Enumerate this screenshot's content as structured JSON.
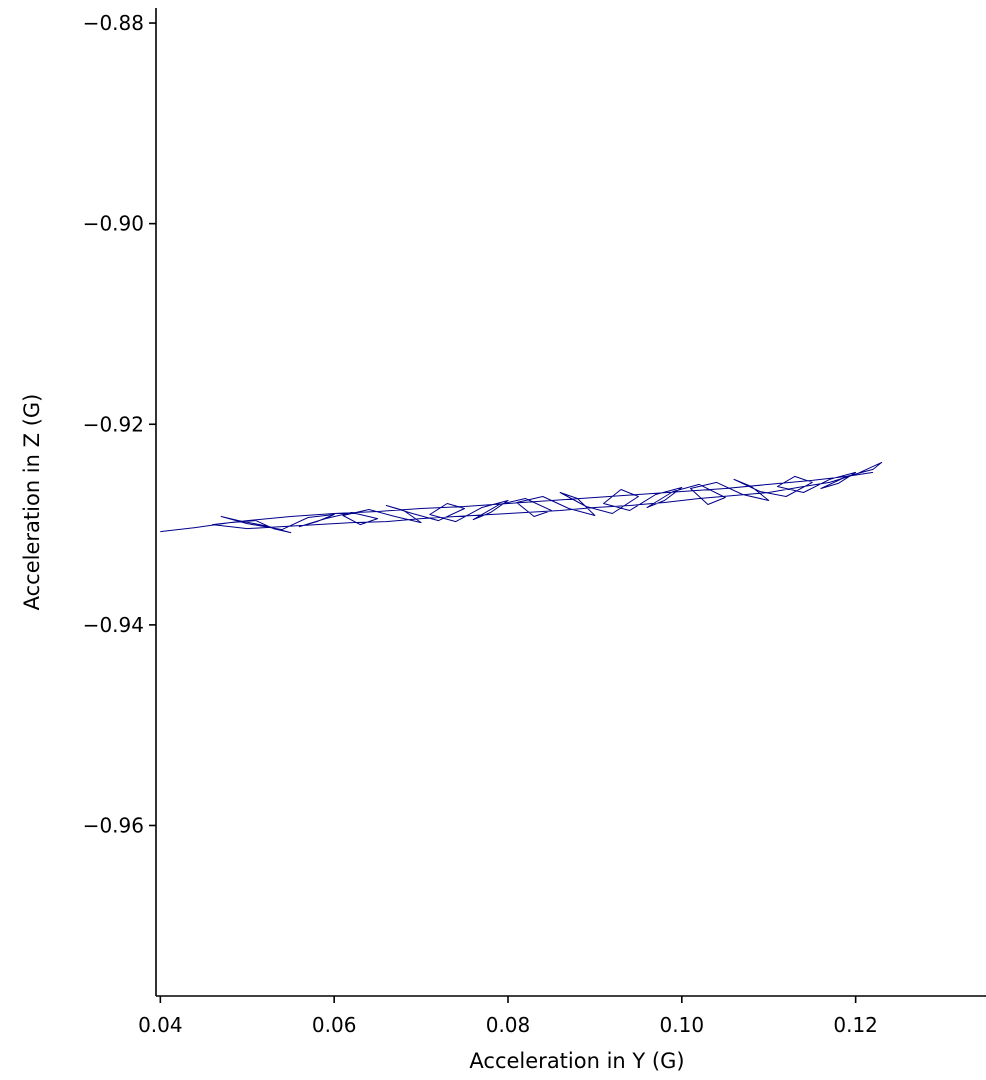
{
  "chart_data": {
    "type": "line",
    "title": "",
    "xlabel": "Acceleration in Y (G)",
    "ylabel": "Acceleration in Z (G)",
    "xlim": [
      0.0395,
      0.135
    ],
    "ylim": [
      -0.977,
      -0.8785
    ],
    "x_ticks": [
      0.04,
      0.06,
      0.08,
      0.1,
      0.12
    ],
    "x_tick_labels": [
      "0.04",
      "0.06",
      "0.08",
      "0.10",
      "0.12"
    ],
    "y_ticks": [
      -0.88,
      -0.9,
      -0.92,
      -0.94,
      -0.96
    ],
    "y_tick_labels": [
      "−0.88",
      "−0.90",
      "−0.92",
      "−0.94",
      "−0.96"
    ],
    "grid": false,
    "legend": "none",
    "series": [
      {
        "color": "#00008b",
        "trace_note": "dense looping accelerometer trajectory; points sampled along its centerline",
        "x": [
          0.04,
          0.044,
          0.048,
          0.051,
          0.053,
          0.055,
          0.052,
          0.049,
          0.047,
          0.05,
          0.054,
          0.057,
          0.06,
          0.058,
          0.056,
          0.059,
          0.062,
          0.065,
          0.063,
          0.061,
          0.064,
          0.067,
          0.07,
          0.068,
          0.066,
          0.069,
          0.072,
          0.075,
          0.073,
          0.071,
          0.074,
          0.077,
          0.08,
          0.078,
          0.076,
          0.079,
          0.082,
          0.085,
          0.083,
          0.081,
          0.084,
          0.087,
          0.09,
          0.088,
          0.086,
          0.089,
          0.092,
          0.095,
          0.093,
          0.091,
          0.094,
          0.097,
          0.1,
          0.098,
          0.096,
          0.099,
          0.102,
          0.105,
          0.103,
          0.101,
          0.104,
          0.107,
          0.11,
          0.108,
          0.106,
          0.109,
          0.112,
          0.115,
          0.113,
          0.111,
          0.114,
          0.117,
          0.12,
          0.118,
          0.116,
          0.119,
          0.122,
          0.123,
          0.12,
          0.117,
          0.114,
          0.11,
          0.106,
          0.102,
          0.098,
          0.094,
          0.09,
          0.086,
          0.082,
          0.078,
          0.074,
          0.07,
          0.066,
          0.062,
          0.058,
          0.054,
          0.05,
          0.046,
          0.05,
          0.055,
          0.06,
          0.065,
          0.07,
          0.075,
          0.08,
          0.085,
          0.09,
          0.095,
          0.1,
          0.105,
          0.11,
          0.115,
          0.119,
          0.122
        ],
        "y": [
          -0.9307,
          -0.9303,
          -0.9298,
          -0.9296,
          -0.9304,
          -0.9308,
          -0.9301,
          -0.9296,
          -0.9292,
          -0.9299,
          -0.9305,
          -0.9293,
          -0.929,
          -0.9297,
          -0.9302,
          -0.9294,
          -0.9288,
          -0.9294,
          -0.93,
          -0.9291,
          -0.9285,
          -0.9292,
          -0.9298,
          -0.9286,
          -0.9281,
          -0.9289,
          -0.9296,
          -0.9284,
          -0.9279,
          -0.929,
          -0.9297,
          -0.9283,
          -0.9276,
          -0.9288,
          -0.9295,
          -0.928,
          -0.9274,
          -0.9286,
          -0.9292,
          -0.9278,
          -0.9272,
          -0.9284,
          -0.9291,
          -0.9274,
          -0.9268,
          -0.9282,
          -0.9289,
          -0.9272,
          -0.9265,
          -0.9279,
          -0.9286,
          -0.927,
          -0.9263,
          -0.9276,
          -0.9283,
          -0.9267,
          -0.926,
          -0.9273,
          -0.928,
          -0.9264,
          -0.9258,
          -0.927,
          -0.9276,
          -0.9262,
          -0.9255,
          -0.9267,
          -0.9272,
          -0.9258,
          -0.9252,
          -0.9262,
          -0.9268,
          -0.9255,
          -0.9248,
          -0.9259,
          -0.9264,
          -0.9252,
          -0.9245,
          -0.9238,
          -0.925,
          -0.9258,
          -0.9262,
          -0.9268,
          -0.9271,
          -0.9274,
          -0.9278,
          -0.9281,
          -0.9283,
          -0.9286,
          -0.9288,
          -0.929,
          -0.9292,
          -0.9294,
          -0.9297,
          -0.9298,
          -0.93,
          -0.9302,
          -0.9304,
          -0.93,
          -0.9296,
          -0.9292,
          -0.9289,
          -0.9287,
          -0.9284,
          -0.9282,
          -0.9279,
          -0.9276,
          -0.9273,
          -0.927,
          -0.9267,
          -0.9264,
          -0.926,
          -0.9256,
          -0.9252,
          -0.9248
        ]
      }
    ]
  }
}
